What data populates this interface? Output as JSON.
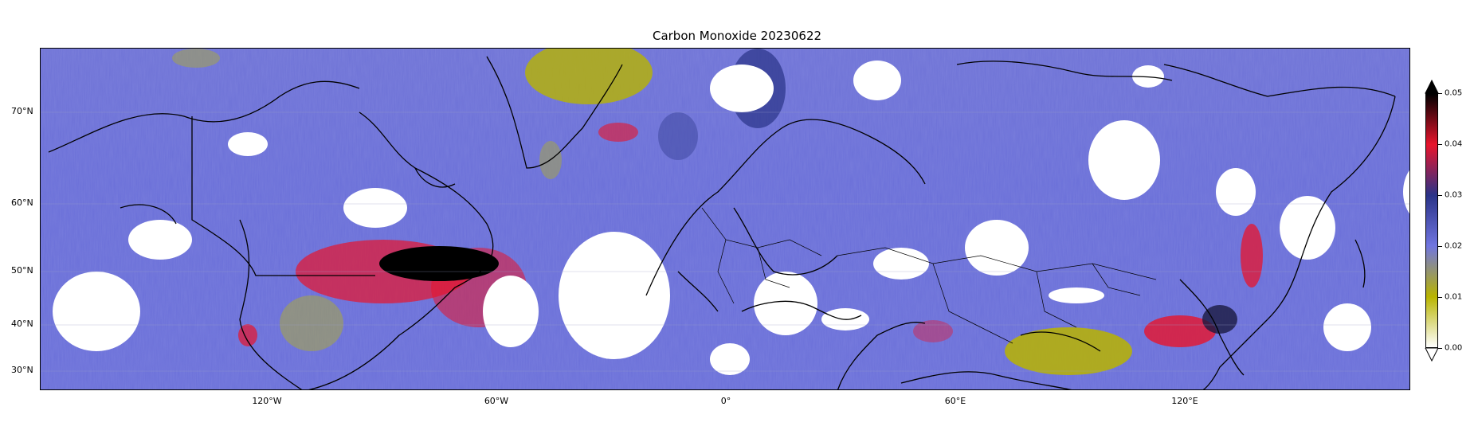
{
  "title": "Carbon Monoxide 20230622",
  "map": {
    "lat_labels": [
      {
        "label": "70°N",
        "lat": 70
      },
      {
        "label": "60°N",
        "lat": 60
      },
      {
        "label": "50°N",
        "lat": 50
      },
      {
        "label": "40°N",
        "lat": 40
      },
      {
        "label": "30°N",
        "lat": 30
      }
    ],
    "lon_labels": [
      {
        "label": "120°W",
        "lon": -120
      },
      {
        "label": "60°W",
        "lon": -60
      },
      {
        "label": "0°",
        "lon": 0
      },
      {
        "label": "60°E",
        "lon": 60
      },
      {
        "label": "120°E",
        "lon": 120
      }
    ],
    "lon_range": [
      -180,
      180
    ],
    "lat_range": [
      26,
      78
    ]
  },
  "colorbar": {
    "ticks": [
      "0.00",
      "0.01",
      "0.02",
      "0.03",
      "0.04",
      "0.05"
    ],
    "range": [
      0.0,
      0.05
    ],
    "colors": [
      "#ffffff",
      "#b8b400",
      "#7075e0",
      "#2a3388",
      "#e8142c",
      "#000000"
    ]
  }
}
